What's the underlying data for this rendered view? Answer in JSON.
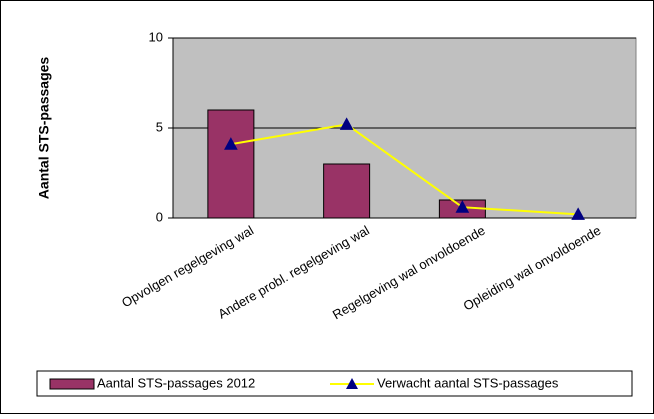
{
  "chart_data": {
    "type": "bar",
    "y_label": "Aantal STS-passages",
    "categories": [
      "Opvolgen regelgeving wal",
      "Andere probl. regelgeving wal",
      "Regelgeving wal onvoldoende",
      "Opleiding wal onvoldoende"
    ],
    "series": [
      {
        "name": "Aantal STS-passages 2012",
        "type": "bar",
        "color": "#993366",
        "values": [
          6,
          3,
          1,
          0
        ]
      },
      {
        "name": "Verwacht aantal STS-passages",
        "type": "line",
        "color": "#ffff00",
        "marker_color": "#000080",
        "values": [
          4.1,
          5.2,
          0.6,
          0.2
        ]
      }
    ],
    "ylim": [
      0,
      10
    ],
    "yticks": [
      0,
      5,
      10
    ],
    "grid": true,
    "plot_background": "#c0c0c0",
    "legend": "bottom"
  }
}
